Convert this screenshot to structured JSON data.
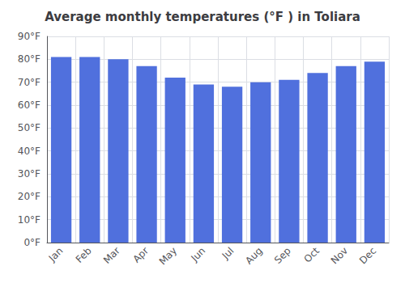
{
  "chart_data": {
    "type": "bar",
    "title": "Average monthly temperatures (°F ) in Toliara",
    "categories": [
      "Jan",
      "Feb",
      "Mar",
      "Apr",
      "May",
      "Jun",
      "Jul",
      "Aug",
      "Sep",
      "Oct",
      "Nov",
      "Dec"
    ],
    "values": [
      81,
      81,
      80,
      77,
      72,
      69,
      68,
      70,
      71,
      74,
      77,
      79
    ],
    "ylim": [
      0,
      90
    ],
    "yticks": [
      {
        "value": 0,
        "label": "0°F"
      },
      {
        "value": 10,
        "label": "10°F"
      },
      {
        "value": 20,
        "label": "20°F"
      },
      {
        "value": 30,
        "label": "30°F"
      },
      {
        "value": 40,
        "label": "40°F"
      },
      {
        "value": 50,
        "label": "50°F"
      },
      {
        "value": 60,
        "label": "60°F"
      },
      {
        "value": 70,
        "label": "70°F"
      },
      {
        "value": 80,
        "label": "80°F"
      },
      {
        "value": 90,
        "label": "90°F"
      }
    ],
    "grid": true
  }
}
